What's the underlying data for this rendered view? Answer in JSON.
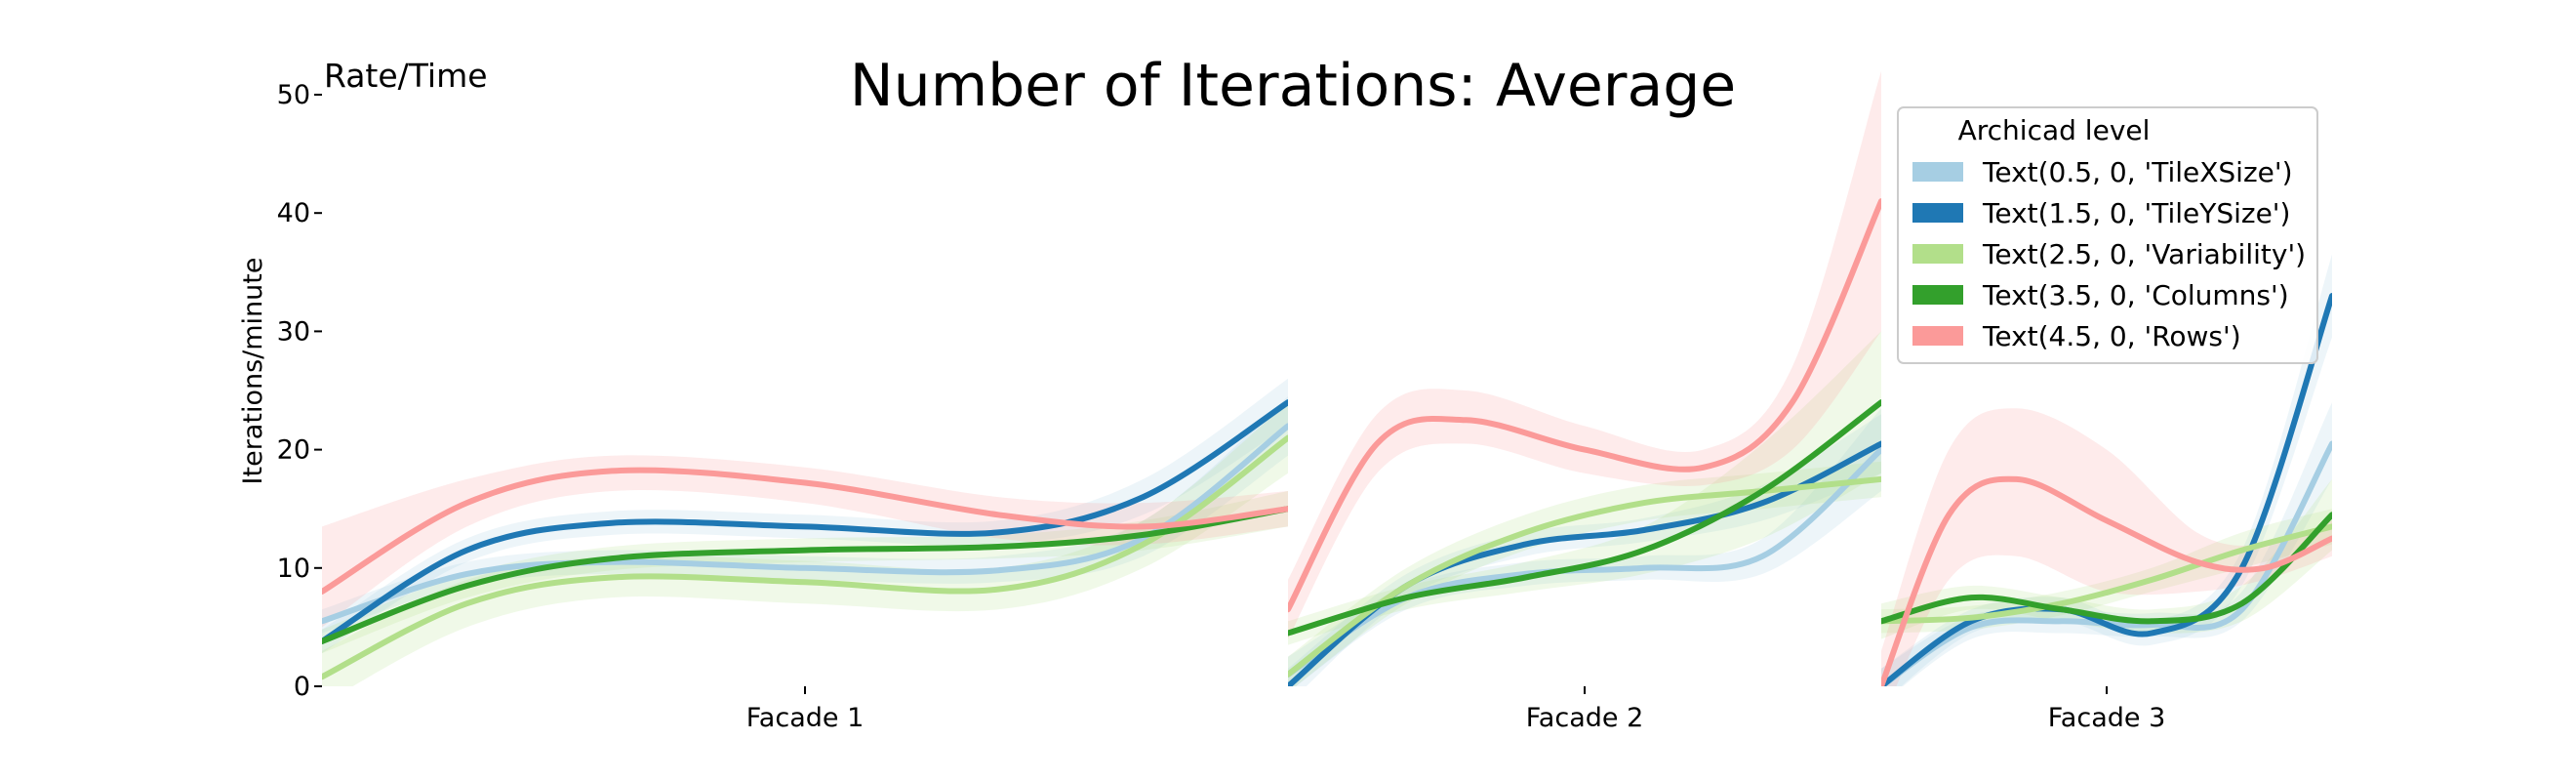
{
  "chart_data": {
    "type": "line",
    "title": "Number of Iterations: Average",
    "corner_label": "Rate/Time",
    "ylabel": "Iterations/minute",
    "xlabel": "",
    "ylim": [
      0,
      50
    ],
    "yticks": [
      0,
      10,
      20,
      30,
      40,
      50
    ],
    "grid": false,
    "legend": {
      "title": "Archicad level",
      "placement": "top-right"
    },
    "panels": [
      {
        "name": "Facade 1",
        "x_range": [
          0,
          1
        ]
      },
      {
        "name": "Facade 2",
        "x_range": [
          0,
          1
        ]
      },
      {
        "name": "Facade 3",
        "x_range": [
          0,
          1
        ]
      }
    ],
    "series": [
      {
        "name": "Text(0.5, 0, 'TileXSize')",
        "color": "#a6cee3",
        "band_color": "#a6cee3",
        "curves": [
          {
            "x": [
              0,
              0.15,
              0.3,
              0.5,
              0.7,
              0.85,
              1
            ],
            "y": [
              5.5,
              9.5,
              10.5,
              10.0,
              9.8,
              12.5,
              22.0
            ],
            "lo": [
              4.5,
              8.5,
              9.5,
              9.0,
              8.8,
              11.0,
              19.5
            ],
            "hi": [
              6.5,
              10.5,
              11.5,
              11.0,
              11.0,
              14.0,
              24.5
            ]
          },
          {
            "x": [
              0,
              0.2,
              0.4,
              0.6,
              0.8,
              1
            ],
            "y": [
              1.0,
              7.5,
              9.5,
              10.0,
              11.0,
              20.0
            ],
            "lo": [
              -0.5,
              6.5,
              8.5,
              9.0,
              9.5,
              16.5
            ],
            "hi": [
              2.5,
              8.5,
              10.5,
              11.0,
              12.5,
              23.5
            ]
          },
          {
            "x": [
              0,
              0.2,
              0.4,
              0.6,
              0.8,
              1
            ],
            "y": [
              0.0,
              5.0,
              5.5,
              5.2,
              6.5,
              20.5
            ],
            "lo": [
              -1.5,
              4.0,
              4.5,
              4.2,
              5.5,
              17.5
            ],
            "hi": [
              1.5,
              6.0,
              6.5,
              6.2,
              8.0,
              24.0
            ]
          }
        ]
      },
      {
        "name": "Text(1.5, 0, 'TileYSize')",
        "color": "#1f78b4",
        "band_color": "#a6cee3",
        "curves": [
          {
            "x": [
              0,
              0.15,
              0.3,
              0.5,
              0.7,
              0.85,
              1
            ],
            "y": [
              3.8,
              11.5,
              13.8,
              13.5,
              13.0,
              16.0,
              24.0
            ],
            "lo": [
              2.8,
              10.5,
              12.8,
              12.5,
              12.0,
              14.5,
              22.0
            ],
            "hi": [
              4.8,
              12.5,
              14.8,
              14.5,
              14.0,
              17.5,
              26.0
            ]
          },
          {
            "x": [
              0,
              0.2,
              0.4,
              0.6,
              0.8,
              1
            ],
            "y": [
              0.0,
              8.5,
              12.0,
              13.2,
              15.5,
              20.5
            ],
            "lo": [
              -1.5,
              7.5,
              11.0,
              12.2,
              14.0,
              18.0
            ],
            "hi": [
              1.5,
              9.5,
              13.0,
              14.2,
              17.0,
              23.0
            ]
          },
          {
            "x": [
              0,
              0.2,
              0.4,
              0.6,
              0.8,
              1
            ],
            "y": [
              0.0,
              5.5,
              6.5,
              4.5,
              10.0,
              33.0
            ],
            "lo": [
              -1.5,
              4.5,
              5.5,
              3.5,
              8.5,
              29.5
            ],
            "hi": [
              1.5,
              6.5,
              7.5,
              5.5,
              11.5,
              36.5
            ]
          }
        ]
      },
      {
        "name": "Text(2.5, 0, 'Variability')",
        "color": "#b2df8a",
        "band_color": "#b2df8a",
        "curves": [
          {
            "x": [
              0,
              0.15,
              0.3,
              0.5,
              0.7,
              0.85,
              1
            ],
            "y": [
              0.8,
              7.0,
              9.2,
              8.8,
              8.2,
              12.0,
              21.0
            ],
            "lo": [
              -1.5,
              5.0,
              7.5,
              7.0,
              6.5,
              10.0,
              18.0
            ],
            "hi": [
              3.0,
              9.0,
              11.0,
              10.6,
              10.0,
              14.0,
              24.0
            ]
          },
          {
            "x": [
              0,
              0.2,
              0.4,
              0.6,
              0.8,
              1
            ],
            "y": [
              1.0,
              8.5,
              13.0,
              15.5,
              16.5,
              17.5
            ],
            "lo": [
              -0.5,
              7.0,
              11.5,
              14.0,
              15.0,
              16.0
            ],
            "hi": [
              2.5,
              10.0,
              14.5,
              17.0,
              18.0,
              19.0
            ]
          },
          {
            "x": [
              0,
              0.2,
              0.4,
              0.6,
              0.8,
              1
            ],
            "y": [
              5.5,
              5.8,
              7.0,
              9.0,
              11.5,
              13.5
            ],
            "lo": [
              4.5,
              4.8,
              6.0,
              8.0,
              10.0,
              12.0
            ],
            "hi": [
              6.5,
              6.8,
              8.0,
              10.0,
              13.0,
              15.0
            ]
          }
        ]
      },
      {
        "name": "Text(3.5, 0, 'Columns')",
        "color": "#33a02c",
        "band_color": "#b2df8a",
        "curves": [
          {
            "x": [
              0,
              0.15,
              0.3,
              0.5,
              0.7,
              0.85,
              1
            ],
            "y": [
              3.8,
              8.5,
              10.8,
              11.5,
              11.8,
              12.8,
              15.0
            ],
            "lo": [
              2.8,
              7.5,
              9.8,
              10.5,
              10.8,
              11.5,
              13.5
            ],
            "hi": [
              4.8,
              9.5,
              11.8,
              12.5,
              12.8,
              14.0,
              16.5
            ]
          },
          {
            "x": [
              0,
              0.2,
              0.4,
              0.6,
              0.8,
              1
            ],
            "y": [
              4.5,
              7.5,
              9.2,
              11.5,
              16.5,
              24.0
            ],
            "lo": [
              3.5,
              6.5,
              8.0,
              9.5,
              12.5,
              18.0
            ],
            "hi": [
              5.5,
              8.5,
              10.5,
              13.5,
              20.5,
              30.0
            ]
          },
          {
            "x": [
              0,
              0.2,
              0.4,
              0.6,
              0.8,
              1
            ],
            "y": [
              5.5,
              7.5,
              6.5,
              5.5,
              7.0,
              14.5
            ],
            "lo": [
              4.0,
              6.5,
              5.5,
              4.5,
              5.5,
              11.5
            ],
            "hi": [
              7.0,
              8.5,
              7.5,
              6.5,
              8.5,
              17.5
            ]
          }
        ]
      },
      {
        "name": "Text(4.5, 0, 'Rows')",
        "color": "#fb9a99",
        "band_color": "#fb9a99",
        "curves": [
          {
            "x": [
              0,
              0.15,
              0.3,
              0.5,
              0.7,
              0.85,
              1
            ],
            "y": [
              8.0,
              15.5,
              18.2,
              17.2,
              14.5,
              13.5,
              15.0
            ],
            "lo": [
              5.0,
              13.5,
              16.5,
              15.5,
              12.5,
              12.0,
              13.5
            ],
            "hi": [
              13.5,
              17.5,
              19.5,
              18.5,
              16.0,
              15.5,
              16.5
            ]
          },
          {
            "x": [
              0,
              0.15,
              0.3,
              0.5,
              0.7,
              0.85,
              1
            ],
            "y": [
              6.5,
              20.5,
              22.5,
              20.0,
              18.5,
              24.0,
              41.0
            ],
            "lo": [
              4.0,
              18.0,
              20.5,
              18.0,
              17.0,
              20.0,
              30.0
            ],
            "hi": [
              9.0,
              23.0,
              25.0,
              22.0,
              20.0,
              27.0,
              52.0
            ]
          },
          {
            "x": [
              0,
              0.15,
              0.3,
              0.5,
              0.7,
              0.85,
              1
            ],
            "y": [
              0.0,
              14.5,
              17.5,
              14.0,
              10.5,
              10.0,
              12.5
            ],
            "lo": [
              -3.0,
              9.0,
              11.0,
              8.0,
              8.0,
              9.0,
              11.0
            ],
            "hi": [
              3.0,
              20.0,
              23.5,
              20.0,
              13.0,
              12.0,
              14.0
            ]
          }
        ]
      }
    ]
  }
}
